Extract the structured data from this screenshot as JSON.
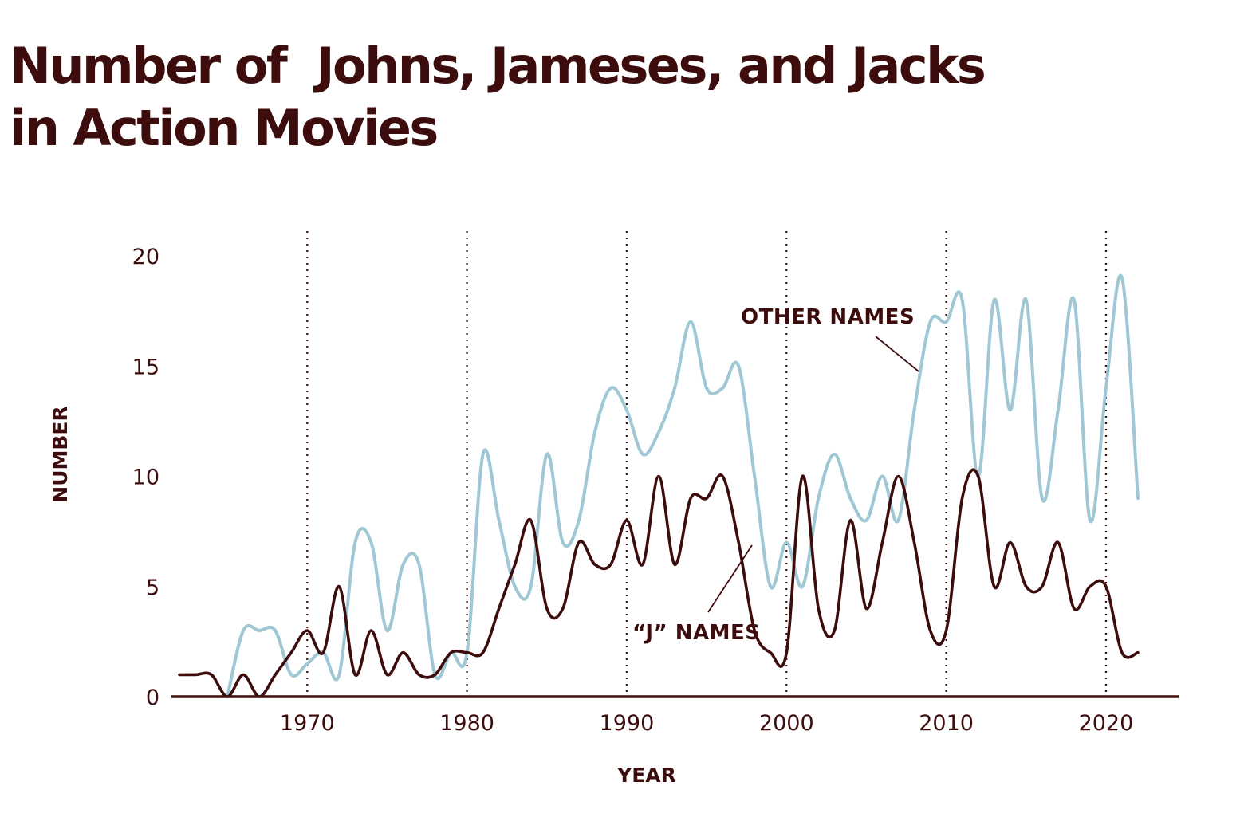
{
  "title": {
    "line1": "Number of  Johns, Jameses, and Jacks",
    "line2": "in Action Movies"
  },
  "colors": {
    "title": "#3d0c0c",
    "j_names": "#3d0c0c",
    "other_names": "#9fc8d4",
    "axis": "#3d0c0c"
  },
  "chart_data": {
    "type": "line",
    "title": "Number of  Johns, Jameses, and Jacks in Action Movies",
    "xlabel": "YEAR",
    "ylabel": "NUMBER",
    "xlim": [
      1962,
      2022
    ],
    "ylim": [
      0,
      20
    ],
    "x_ticks": [
      1970,
      1980,
      1990,
      2000,
      2010,
      2020
    ],
    "y_ticks": [
      0,
      5,
      10,
      15,
      20
    ],
    "grid": "dotted vertical lines at decades",
    "legend": "inline annotations",
    "annotations": [
      {
        "label": "OTHER NAMES",
        "series": "OTHER NAMES"
      },
      {
        "label": "“J” NAMES",
        "series": "“J” NAMES"
      }
    ],
    "series": [
      {
        "name": "“J” NAMES",
        "x": [
          1962,
          1963,
          1964,
          1965,
          1966,
          1967,
          1968,
          1969,
          1970,
          1971,
          1972,
          1973,
          1974,
          1975,
          1976,
          1977,
          1978,
          1979,
          1980,
          1981,
          1982,
          1983,
          1984,
          1985,
          1986,
          1987,
          1988,
          1989,
          1990,
          1991,
          1992,
          1993,
          1994,
          1995,
          1996,
          1997,
          1998,
          1999,
          2000,
          2001,
          2002,
          2003,
          2004,
          2005,
          2006,
          2007,
          2008,
          2009,
          2010,
          2011,
          2012,
          2013,
          2014,
          2015,
          2016,
          2017,
          2018,
          2019,
          2020,
          2021,
          2022
        ],
        "values": [
          1,
          1,
          1,
          0,
          1,
          0,
          1,
          2,
          3,
          2,
          5,
          1,
          3,
          1,
          2,
          1,
          1,
          2,
          2,
          2,
          4,
          6,
          8,
          4,
          4,
          7,
          6,
          6,
          8,
          6,
          10,
          6,
          9,
          9,
          10,
          7,
          3,
          2,
          2,
          10,
          4,
          3,
          8,
          4,
          7,
          10,
          7,
          3,
          3,
          9,
          10,
          5,
          7,
          5,
          5,
          7,
          4,
          5,
          5,
          2,
          2
        ],
        "color": "#3d0c0c"
      },
      {
        "name": "OTHER NAMES",
        "x": [
          1965,
          1966,
          1967,
          1968,
          1969,
          1970,
          1971,
          1972,
          1973,
          1974,
          1975,
          1976,
          1977,
          1978,
          1979,
          1980,
          1981,
          1982,
          1983,
          1984,
          1985,
          1986,
          1987,
          1988,
          1989,
          1990,
          1991,
          1992,
          1993,
          1994,
          1995,
          1996,
          1997,
          1998,
          1999,
          2000,
          2001,
          2002,
          2003,
          2004,
          2005,
          2006,
          2007,
          2008,
          2009,
          2010,
          2011,
          2012,
          2013,
          2014,
          2015,
          2016,
          2017,
          2018,
          2019,
          2020,
          2021,
          2022
        ],
        "values": [
          0,
          3,
          3,
          3,
          1,
          1.5,
          2,
          1,
          7,
          7,
          3,
          6,
          6,
          1,
          2,
          2,
          11,
          8,
          5,
          5,
          11,
          7,
          8,
          12,
          14,
          13,
          11,
          12,
          14,
          17,
          14,
          14,
          15,
          10,
          5,
          7,
          5,
          9,
          11,
          9,
          8,
          10,
          8,
          13,
          17,
          17,
          18,
          10,
          18,
          13,
          18,
          9,
          13,
          18,
          8,
          14,
          19,
          9
        ],
        "color": "#9fc8d4"
      }
    ]
  }
}
